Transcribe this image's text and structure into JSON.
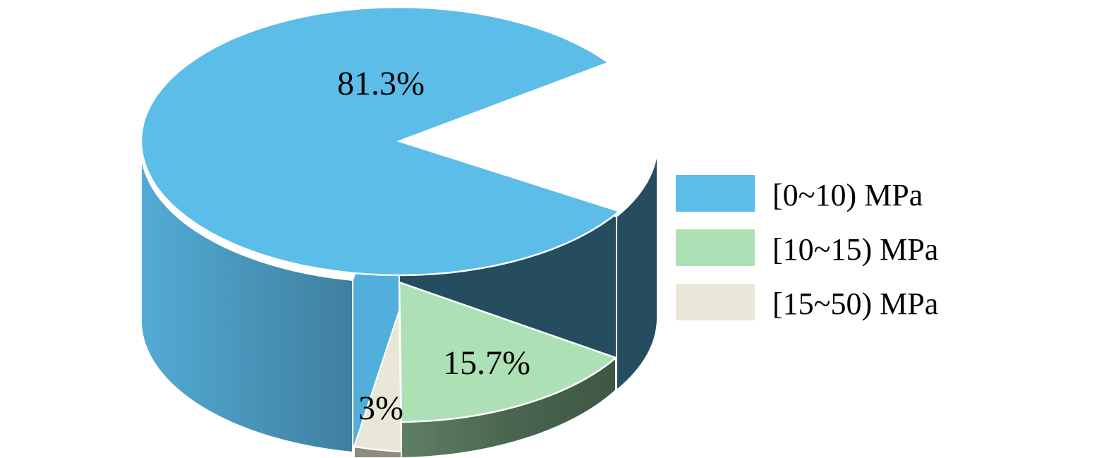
{
  "chart_data": {
    "type": "pie",
    "style": "3d",
    "slices": [
      {
        "label": "[0~10) MPa",
        "value": 81.3,
        "display": "81.3%",
        "color": "#5BBDE8",
        "side_color": "#4897BE",
        "interior_color": "#264D5F"
      },
      {
        "label": "[10~15) MPa",
        "value": 15.7,
        "display": "15.7%",
        "color": "#AEE0B6",
        "side_color": "#4E6B52",
        "interior_color": "#455E47"
      },
      {
        "label": "[15~50) MPa",
        "value": 3,
        "display": "3%",
        "color": "#E8E7D8",
        "side_color": "#8E8C7E",
        "interior_color": "#7C7B70"
      }
    ],
    "exploded": [
      "[0~10) MPa"
    ],
    "legend": "right",
    "title": ""
  }
}
